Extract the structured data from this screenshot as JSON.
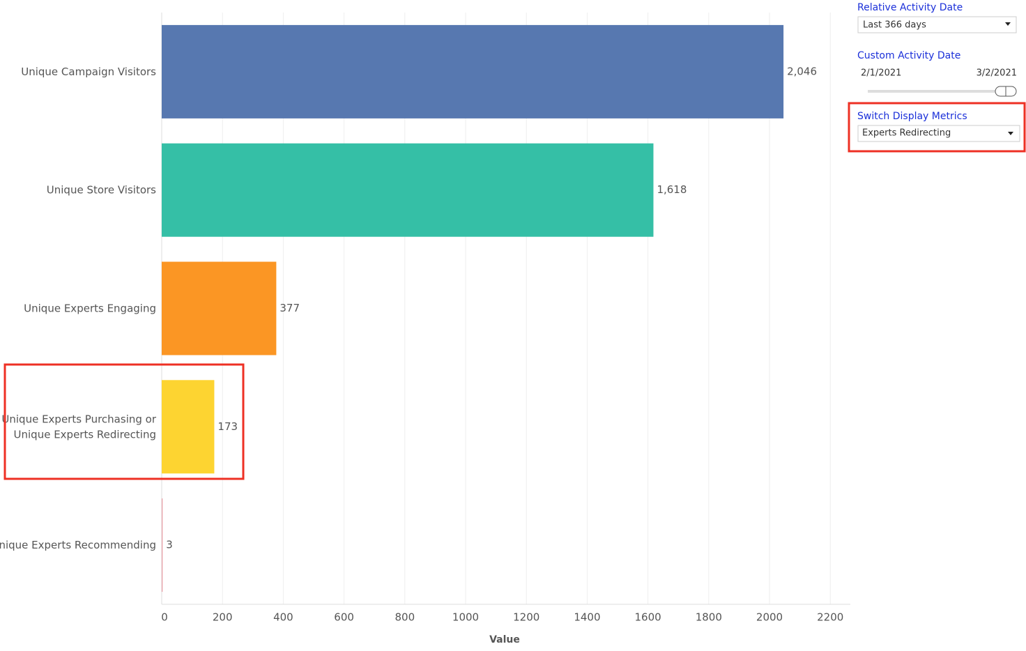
{
  "chart_data": {
    "type": "bar",
    "orientation": "horizontal",
    "categories": [
      "Unique Campaign Visitors",
      "Unique Store Visitors",
      "Unique Experts Engaging",
      "Unique Experts Purchasing or\nUnique Experts Redirecting",
      "Unique Experts Recommending"
    ],
    "values": [
      2046,
      1618,
      377,
      173,
      3
    ],
    "value_labels": [
      "2,046",
      "1,618",
      "377",
      "173",
      "3"
    ],
    "colors": [
      "#5778b0",
      "#35bfa6",
      "#fb9624",
      "#fdd431",
      "#e8a0a8"
    ],
    "xlim": [
      0,
      2266
    ],
    "xticks": [
      0,
      200,
      400,
      600,
      800,
      1000,
      1200,
      1400,
      1600,
      1800,
      2000,
      2200
    ],
    "xlabel": "Value",
    "grid": true
  },
  "filters": {
    "relative_date": {
      "title": "Relative Activity Date",
      "value": "Last 366 days"
    },
    "custom_date": {
      "title": "Custom Activity Date",
      "start": "2/1/2021",
      "end": "3/2/2021"
    },
    "display_metrics": {
      "title": "Switch Display Metrics",
      "value": "Experts Redirecting"
    }
  }
}
